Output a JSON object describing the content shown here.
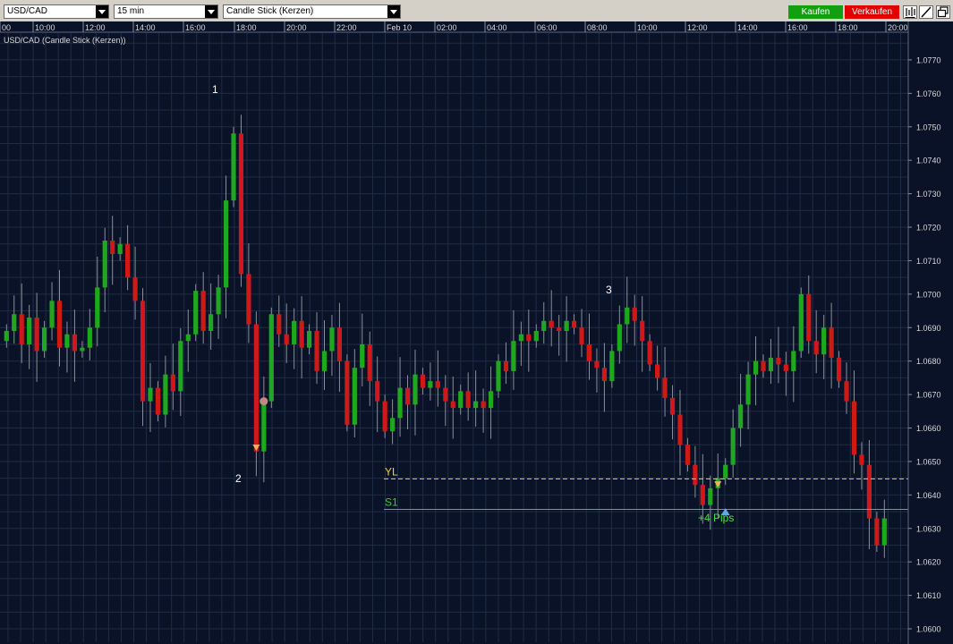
{
  "toolbar": {
    "symbol": "USD/CAD",
    "timeframe": "15 min",
    "chart_style": "Candle Stick (Kerzen)",
    "buy_label": "Kaufen",
    "sell_label": "Verkaufen",
    "colors": {
      "buy": "#12a012",
      "sell": "#e00000"
    },
    "icons": [
      "bar-chart-icon",
      "draw-line-icon",
      "window-restore-icon"
    ]
  },
  "chart_data": {
    "type": "candlestick",
    "title": "USD/CAD (Candle Stick (Kerzen))",
    "x_ticks": [
      "00",
      "10:00",
      "12:00",
      "14:00",
      "16:00",
      "18:00",
      "20:00",
      "22:00",
      "Feb 10",
      "02:00",
      "04:00",
      "06:00",
      "08:00",
      "10:00",
      "12:00",
      "14:00",
      "16:00",
      "18:00",
      "20:00"
    ],
    "y_ticks": [
      "1.0770",
      "1.0760",
      "1.0750",
      "1.0740",
      "1.0730",
      "1.0720",
      "1.0710",
      "1.0700",
      "1.0690",
      "1.0680",
      "1.0670",
      "1.0660",
      "1.0650",
      "1.0640",
      "1.0630",
      "1.0620",
      "1.0610",
      "1.0600"
    ],
    "ylim": [
      1.0596,
      1.0778
    ],
    "grid": true,
    "colors": {
      "up": "#1fa81f",
      "down": "#d01818",
      "background": "#0a1228",
      "grid": "#1e2c45"
    },
    "closes": [
      1.0689,
      1.0694,
      1.0685,
      1.0693,
      1.0683,
      1.069,
      1.0698,
      1.0684,
      1.0688,
      1.0683,
      1.0684,
      1.069,
      1.0702,
      1.0716,
      1.0712,
      1.0715,
      1.0705,
      1.0698,
      1.0668,
      1.0672,
      1.0664,
      1.0676,
      1.0671,
      1.0686,
      1.0688,
      1.0701,
      1.0689,
      1.0694,
      1.0702,
      1.0728,
      1.0748,
      1.0706,
      1.0691,
      1.0653,
      1.0668,
      1.0694,
      1.0688,
      1.0685,
      1.0692,
      1.0684,
      1.0689,
      1.0677,
      1.0683,
      1.069,
      1.068,
      1.0661,
      1.0678,
      1.0685,
      1.0674,
      1.0668,
      1.0659,
      1.0663,
      1.0672,
      1.0667,
      1.0676,
      1.0672,
      1.0674,
      1.0672,
      1.0668,
      1.0666,
      1.0671,
      1.0666,
      1.0668,
      1.0666,
      1.0671,
      1.068,
      1.0677,
      1.0686,
      1.0688,
      1.0686,
      1.0689,
      1.0692,
      1.069,
      1.0689,
      1.0692,
      1.069,
      1.0685,
      1.068,
      1.0678,
      1.0674,
      1.0683,
      1.0691,
      1.0696,
      1.0692,
      1.0686,
      1.0679,
      1.0675,
      1.0669,
      1.0664,
      1.0655,
      1.0649,
      1.0643,
      1.0637,
      1.0642,
      1.0645,
      1.0649,
      1.066,
      1.0667,
      1.0676,
      1.068,
      1.0677,
      1.0681,
      1.0679,
      1.0677,
      1.0683,
      1.07,
      1.0686,
      1.0682,
      1.069,
      1.0681,
      1.0674,
      1.0668,
      1.0652,
      1.0649,
      1.0633,
      1.0625,
      1.0633
    ],
    "annotations": [
      {
        "label": "1",
        "color": "#ffffff"
      },
      {
        "label": "2",
        "color": "#ffffff"
      },
      {
        "label": "3",
        "color": "#ffffff"
      },
      {
        "label": "+4 Pips",
        "color": "#44e044"
      }
    ],
    "levels": [
      {
        "label": "YL",
        "value": 1.06448,
        "color": "#e8d830",
        "style": "dashed"
      },
      {
        "label": "S1",
        "value": 1.06357,
        "color": "#2ed02e",
        "style": "solid"
      }
    ],
    "markers": [
      {
        "kind": "sell-arrow",
        "index": 33,
        "value": 1.0654,
        "color": "#f0b060"
      },
      {
        "kind": "exit-dot",
        "index": 34,
        "value": 1.0668,
        "color": "#c08888"
      },
      {
        "kind": "sell-arrow",
        "index": 94,
        "value": 1.0643,
        "color": "#f0b060"
      },
      {
        "kind": "buy-arrow",
        "index": 95,
        "value": 1.0635,
        "color": "#60a8e8"
      }
    ]
  }
}
